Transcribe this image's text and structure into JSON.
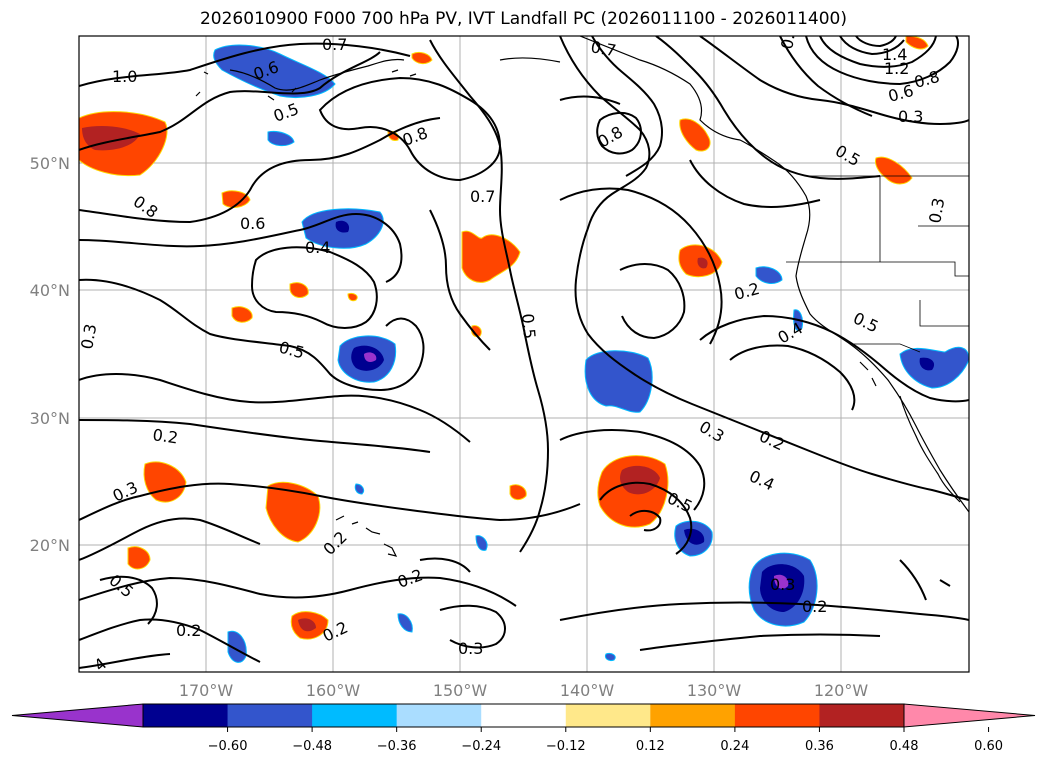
{
  "title": "2026010900 F000 700 hPa PV, IVT Landfall PC (2026011100 - 2026011400)",
  "lat_ticks": [
    "50°N",
    "40°N",
    "30°N",
    "20°N"
  ],
  "lon_ticks": [
    "170°W",
    "160°W",
    "150°W",
    "140°W",
    "130°W",
    "120°W"
  ],
  "colorbar": {
    "colors": [
      "#9933cc",
      "#000090",
      "#3355cc",
      "#00bbff",
      "#aaddff",
      "#ffffff",
      "#ffe88a",
      "#ffa200",
      "#ff4500",
      "#b22222",
      "#ff88aa"
    ],
    "tick_labels": [
      "−0.60",
      "−0.48",
      "−0.36",
      "−0.24",
      "−0.12",
      "0.12",
      "0.24",
      "0.36",
      "0.48",
      "0.60"
    ]
  },
  "contour_labels": [
    "1.0",
    "0.7",
    "0.6",
    "0.5",
    "0.8",
    "0.7",
    "0.8",
    "1.4",
    "1.2",
    "0.8",
    "0.6",
    "0.3",
    "0.5",
    "0.3",
    "0.8",
    "0.6",
    "0.4",
    "0.7",
    "0.2",
    "0.4",
    "0.5",
    "0.3",
    "0.5",
    "0.5",
    "0.2",
    "0.3",
    "0.3",
    "0.2",
    "0.4",
    "0.5",
    "0.3",
    "0.5",
    "0.2",
    "0.2",
    "0.2",
    "0.2",
    "0.3",
    "4",
    "0.3",
    "0.2"
  ]
}
